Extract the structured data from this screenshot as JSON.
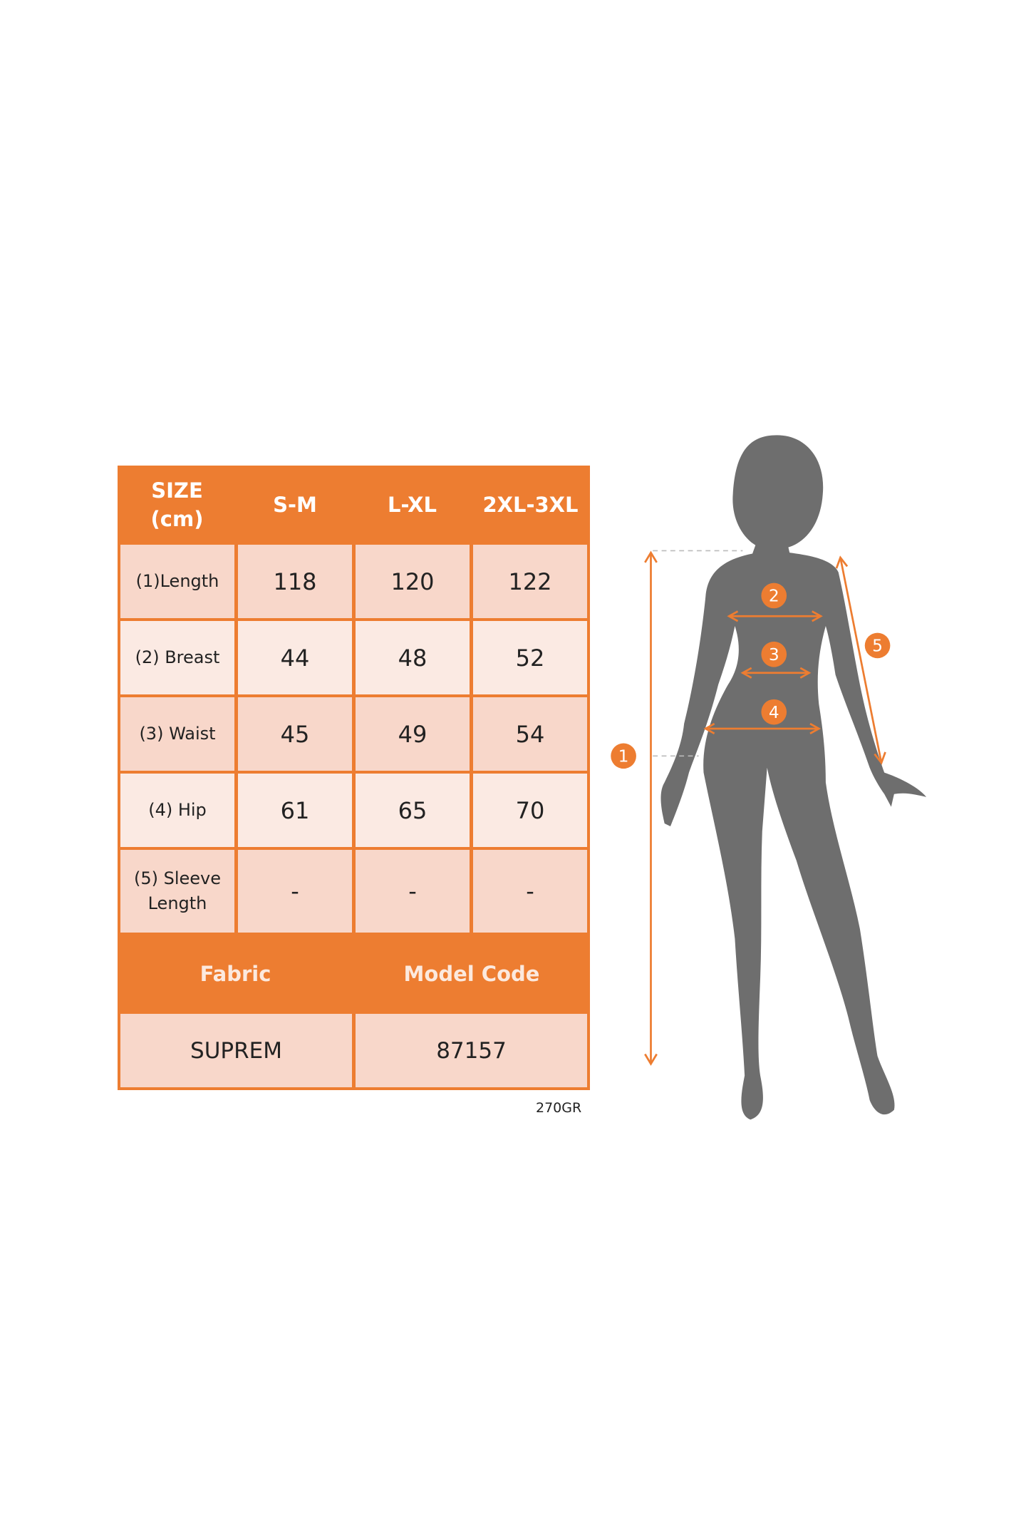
{
  "size_table": {
    "header": {
      "size_label": "SIZE",
      "unit_label": "(cm)",
      "sizes": [
        "S-M",
        "L-XL",
        "2XL-3XL"
      ]
    },
    "rows": [
      {
        "label": "(1)Length",
        "values": [
          "118",
          "120",
          "122"
        ]
      },
      {
        "label": "(2) Breast",
        "values": [
          "44",
          "48",
          "52"
        ]
      },
      {
        "label": "(3) Waist",
        "values": [
          "45",
          "49",
          "54"
        ]
      },
      {
        "label": "(4) Hip",
        "values": [
          "61",
          "65",
          "70"
        ]
      },
      {
        "label_line1": "(5) Sleeve",
        "label_line2": "Length",
        "values": [
          "-",
          "-",
          "-"
        ]
      }
    ],
    "info_header": {
      "fabric_label": "Fabric",
      "model_code_label": "Model Code"
    },
    "info_values": {
      "fabric": "SUPREM",
      "model_code": "87157"
    }
  },
  "weight_note": "270GR",
  "figure": {
    "markers": [
      "1",
      "2",
      "3",
      "4",
      "5"
    ],
    "colors": {
      "accent": "#ED7D31",
      "silhouette": "#6E6E6E",
      "cell_dark": "#F8D7CA",
      "cell_light": "#FBEAE3"
    }
  }
}
